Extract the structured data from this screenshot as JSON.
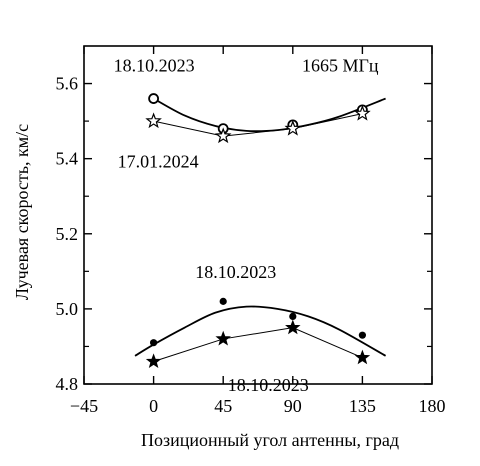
{
  "chart_data": {
    "type": "scatter",
    "xlabel": "Позиционный угол антенны, град",
    "ylabel": "Лучевая скорость, км/с",
    "xlim": [
      -45,
      180
    ],
    "ylim": [
      4.8,
      5.7
    ],
    "xticks": [
      {
        "v": -45,
        "label": "−45"
      },
      {
        "v": 0,
        "label": "0"
      },
      {
        "v": 45,
        "label": "45"
      },
      {
        "v": 90,
        "label": "90"
      },
      {
        "v": 135,
        "label": "135"
      },
      {
        "v": 180,
        "label": "180"
      }
    ],
    "yticks": [
      {
        "v": 4.8,
        "label": "4.8"
      },
      {
        "v": 5.0,
        "label": "5.0"
      },
      {
        "v": 5.2,
        "label": "5.2"
      },
      {
        "v": 5.4,
        "label": "5.4"
      },
      {
        "v": 5.6,
        "label": "5.6"
      }
    ],
    "grid": false,
    "annotations": [
      {
        "text": "18.10.2023",
        "x": 0,
        "y": 5.6
      },
      {
        "text": "1665 МГц",
        "x": 105,
        "y": 5.6
      },
      {
        "text": "17.01.2024",
        "x": 0,
        "y": 5.44
      },
      {
        "text": "18.10.2023",
        "x": 45,
        "y": 5.05
      },
      {
        "text": "18.10.2023",
        "x": 57,
        "y": 4.85
      }
    ],
    "series": [
      {
        "marker": "open-circle",
        "x": [
          0,
          45,
          90,
          135
        ],
        "y": [
          5.56,
          5.48,
          5.49,
          5.53
        ]
      },
      {
        "marker": "open-star",
        "x": [
          0,
          45,
          90,
          135
        ],
        "y": [
          5.5,
          5.46,
          5.48,
          5.52
        ]
      },
      {
        "marker": "filled-circle",
        "x": [
          0,
          45,
          90,
          135
        ],
        "y": [
          4.91,
          5.02,
          4.98,
          4.93
        ]
      },
      {
        "marker": "filled-star",
        "x": [
          0,
          45,
          90,
          135
        ],
        "y": [
          4.86,
          4.92,
          4.95,
          4.87
        ]
      }
    ],
    "fit_curves": [
      {
        "x": [
          0,
          20,
          40,
          60,
          80,
          100,
          120,
          150
        ],
        "y": [
          5.56,
          5.515,
          5.487,
          5.474,
          5.476,
          5.49,
          5.512,
          5.56
        ]
      },
      {
        "x": [
          -12,
          0,
          20,
          40,
          60,
          80,
          100,
          120,
          150
        ],
        "y": [
          4.875,
          4.905,
          4.95,
          4.99,
          5.006,
          5.0,
          4.98,
          4.945,
          4.875
        ]
      }
    ]
  }
}
